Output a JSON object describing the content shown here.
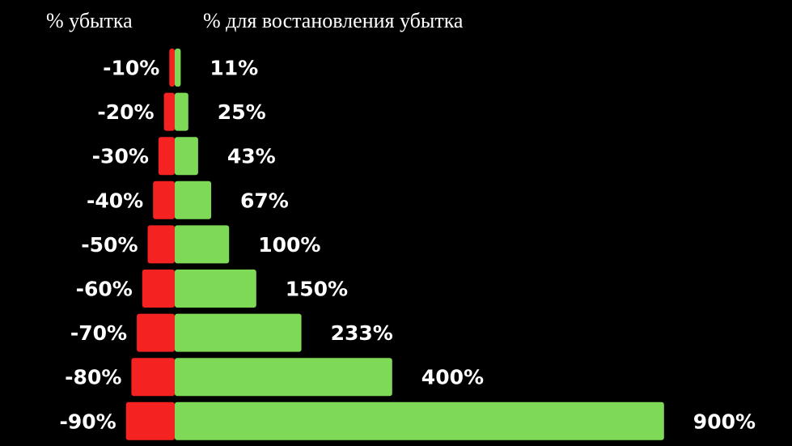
{
  "chart_data": {
    "type": "bar",
    "headers": {
      "loss": "% убытка",
      "recovery": "% для востановления убытка"
    },
    "categories": [
      "-10%",
      "-20%",
      "-30%",
      "-40%",
      "-50%",
      "-60%",
      "-70%",
      "-80%",
      "-90%"
    ],
    "series": [
      {
        "values": [
          10,
          20,
          30,
          40,
          50,
          60,
          70,
          80,
          90
        ],
        "color": "#f52222"
      },
      {
        "values": [
          11,
          25,
          43,
          67,
          100,
          150,
          233,
          400,
          900
        ],
        "color": "#7ed957"
      }
    ],
    "value_labels": [
      "11%",
      "25%",
      "43%",
      "67%",
      "100%",
      "150%",
      "233%",
      "400%",
      "900%"
    ],
    "background": "#000000",
    "grid": false,
    "legend": "none"
  }
}
